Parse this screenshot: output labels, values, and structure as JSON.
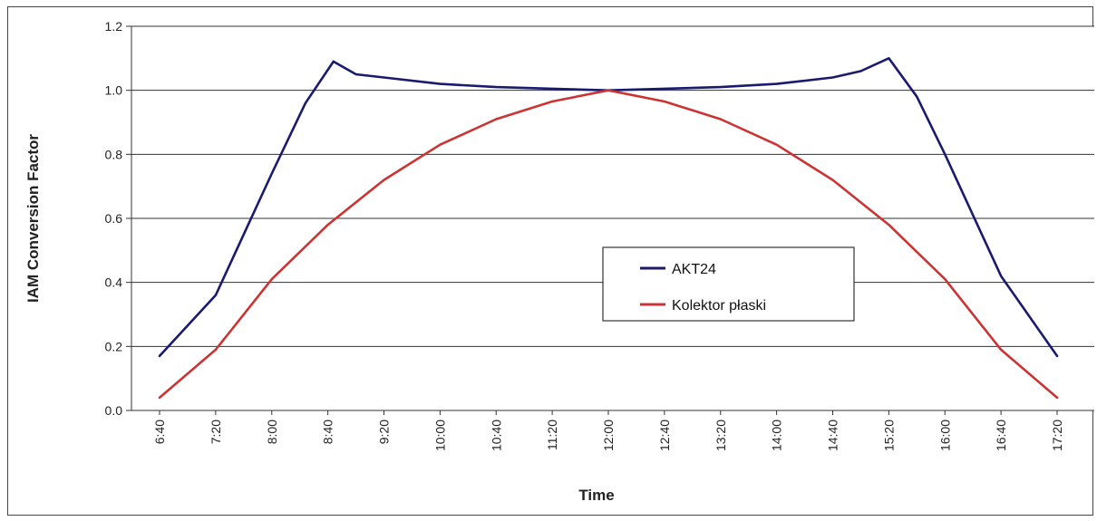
{
  "chart_data": {
    "type": "line",
    "title": "",
    "xlabel": "Time",
    "ylabel": "IAM Conversion Factor",
    "ylim": [
      0,
      1.2
    ],
    "yticks": [
      "0.0",
      "0.2",
      "0.4",
      "0.6",
      "0.8",
      "1.0",
      "1.2"
    ],
    "ytick_values": [
      0,
      0.2,
      0.4,
      0.6,
      0.8,
      1.0,
      1.2
    ],
    "categories": [
      "6:40",
      "7:20",
      "8:00",
      "8:40",
      "9:20",
      "10:00",
      "10:40",
      "11:20",
      "12:00",
      "12:40",
      "13:20",
      "14:00",
      "14:40",
      "15:20",
      "16:00",
      "16:40",
      "17:20"
    ],
    "grid": true,
    "legend_position": "center-right",
    "series": [
      {
        "name": "AKT24",
        "color": "#1a1a6e",
        "points": [
          [
            0,
            0.17
          ],
          [
            1,
            0.36
          ],
          [
            2,
            0.74
          ],
          [
            2.6,
            0.96
          ],
          [
            3.1,
            1.09
          ],
          [
            3.5,
            1.05
          ],
          [
            4,
            1.04
          ],
          [
            5,
            1.02
          ],
          [
            6,
            1.01
          ],
          [
            7,
            1.005
          ],
          [
            8,
            1.0
          ],
          [
            9,
            1.005
          ],
          [
            10,
            1.01
          ],
          [
            11,
            1.02
          ],
          [
            12,
            1.04
          ],
          [
            12.5,
            1.06
          ],
          [
            13,
            1.1
          ],
          [
            13.5,
            0.98
          ],
          [
            14,
            0.8
          ],
          [
            15,
            0.42
          ],
          [
            16,
            0.17
          ]
        ]
      },
      {
        "name": "Kolektor płaski",
        "color": "#cc3333",
        "points": [
          [
            0,
            0.04
          ],
          [
            1,
            0.19
          ],
          [
            2,
            0.41
          ],
          [
            3,
            0.58
          ],
          [
            4,
            0.72
          ],
          [
            5,
            0.83
          ],
          [
            6,
            0.91
          ],
          [
            7,
            0.965
          ],
          [
            8,
            1.0
          ],
          [
            9,
            0.965
          ],
          [
            10,
            0.91
          ],
          [
            11,
            0.83
          ],
          [
            12,
            0.72
          ],
          [
            13,
            0.58
          ],
          [
            14,
            0.41
          ],
          [
            15,
            0.19
          ],
          [
            16,
            0.04
          ]
        ]
      }
    ]
  }
}
